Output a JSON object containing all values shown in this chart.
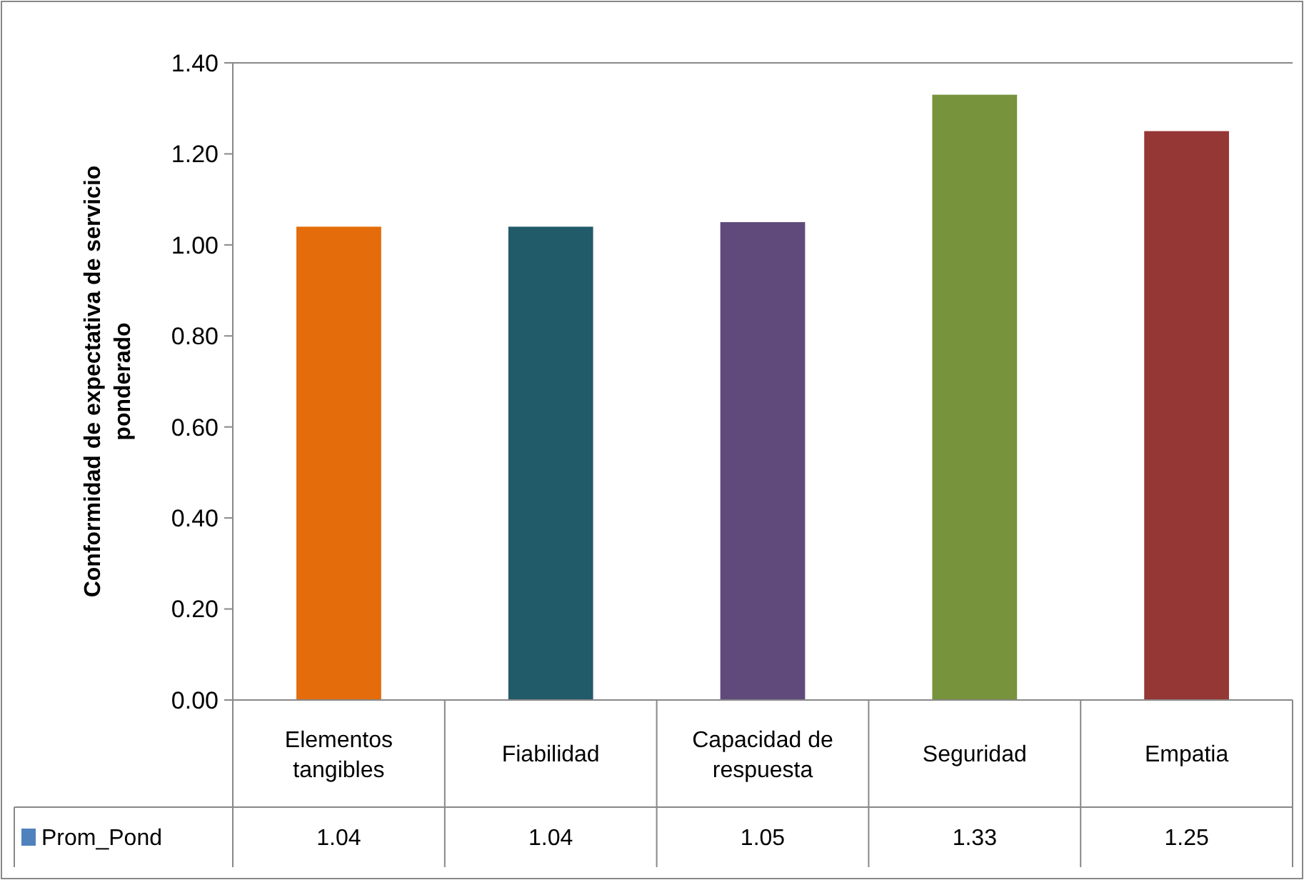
{
  "chart_data": {
    "type": "bar",
    "ylabel": "Conformidad de expectativa de servicio ponderado",
    "categories": [
      "Elementos tangibles",
      "Fiabilidad",
      "Capacidad de respuesta",
      "Seguridad",
      "Empatia"
    ],
    "series": [
      {
        "name": "Prom_Pond",
        "color": "#4f81bd",
        "colors": [
          "#e46c0a",
          "#215a69",
          "#604a7b",
          "#77933c",
          "#953735"
        ],
        "values": [
          1.04,
          1.04,
          1.05,
          1.33,
          1.25
        ]
      }
    ],
    "ylim": [
      0,
      1.4
    ],
    "yticks": [
      {
        "value": 0,
        "label": "0.00"
      },
      {
        "value": 0.2,
        "label": "0.20"
      },
      {
        "value": 0.4,
        "label": "0.40"
      },
      {
        "value": 0.6,
        "label": "0.60"
      },
      {
        "value": 0.8,
        "label": "0.80"
      },
      {
        "value": 1,
        "label": "1.00"
      },
      {
        "value": 1.2,
        "label": "1.20"
      },
      {
        "value": 1.4,
        "label": "1.40"
      }
    ],
    "data_labels": true,
    "legend": "bottom",
    "grid": false
  }
}
